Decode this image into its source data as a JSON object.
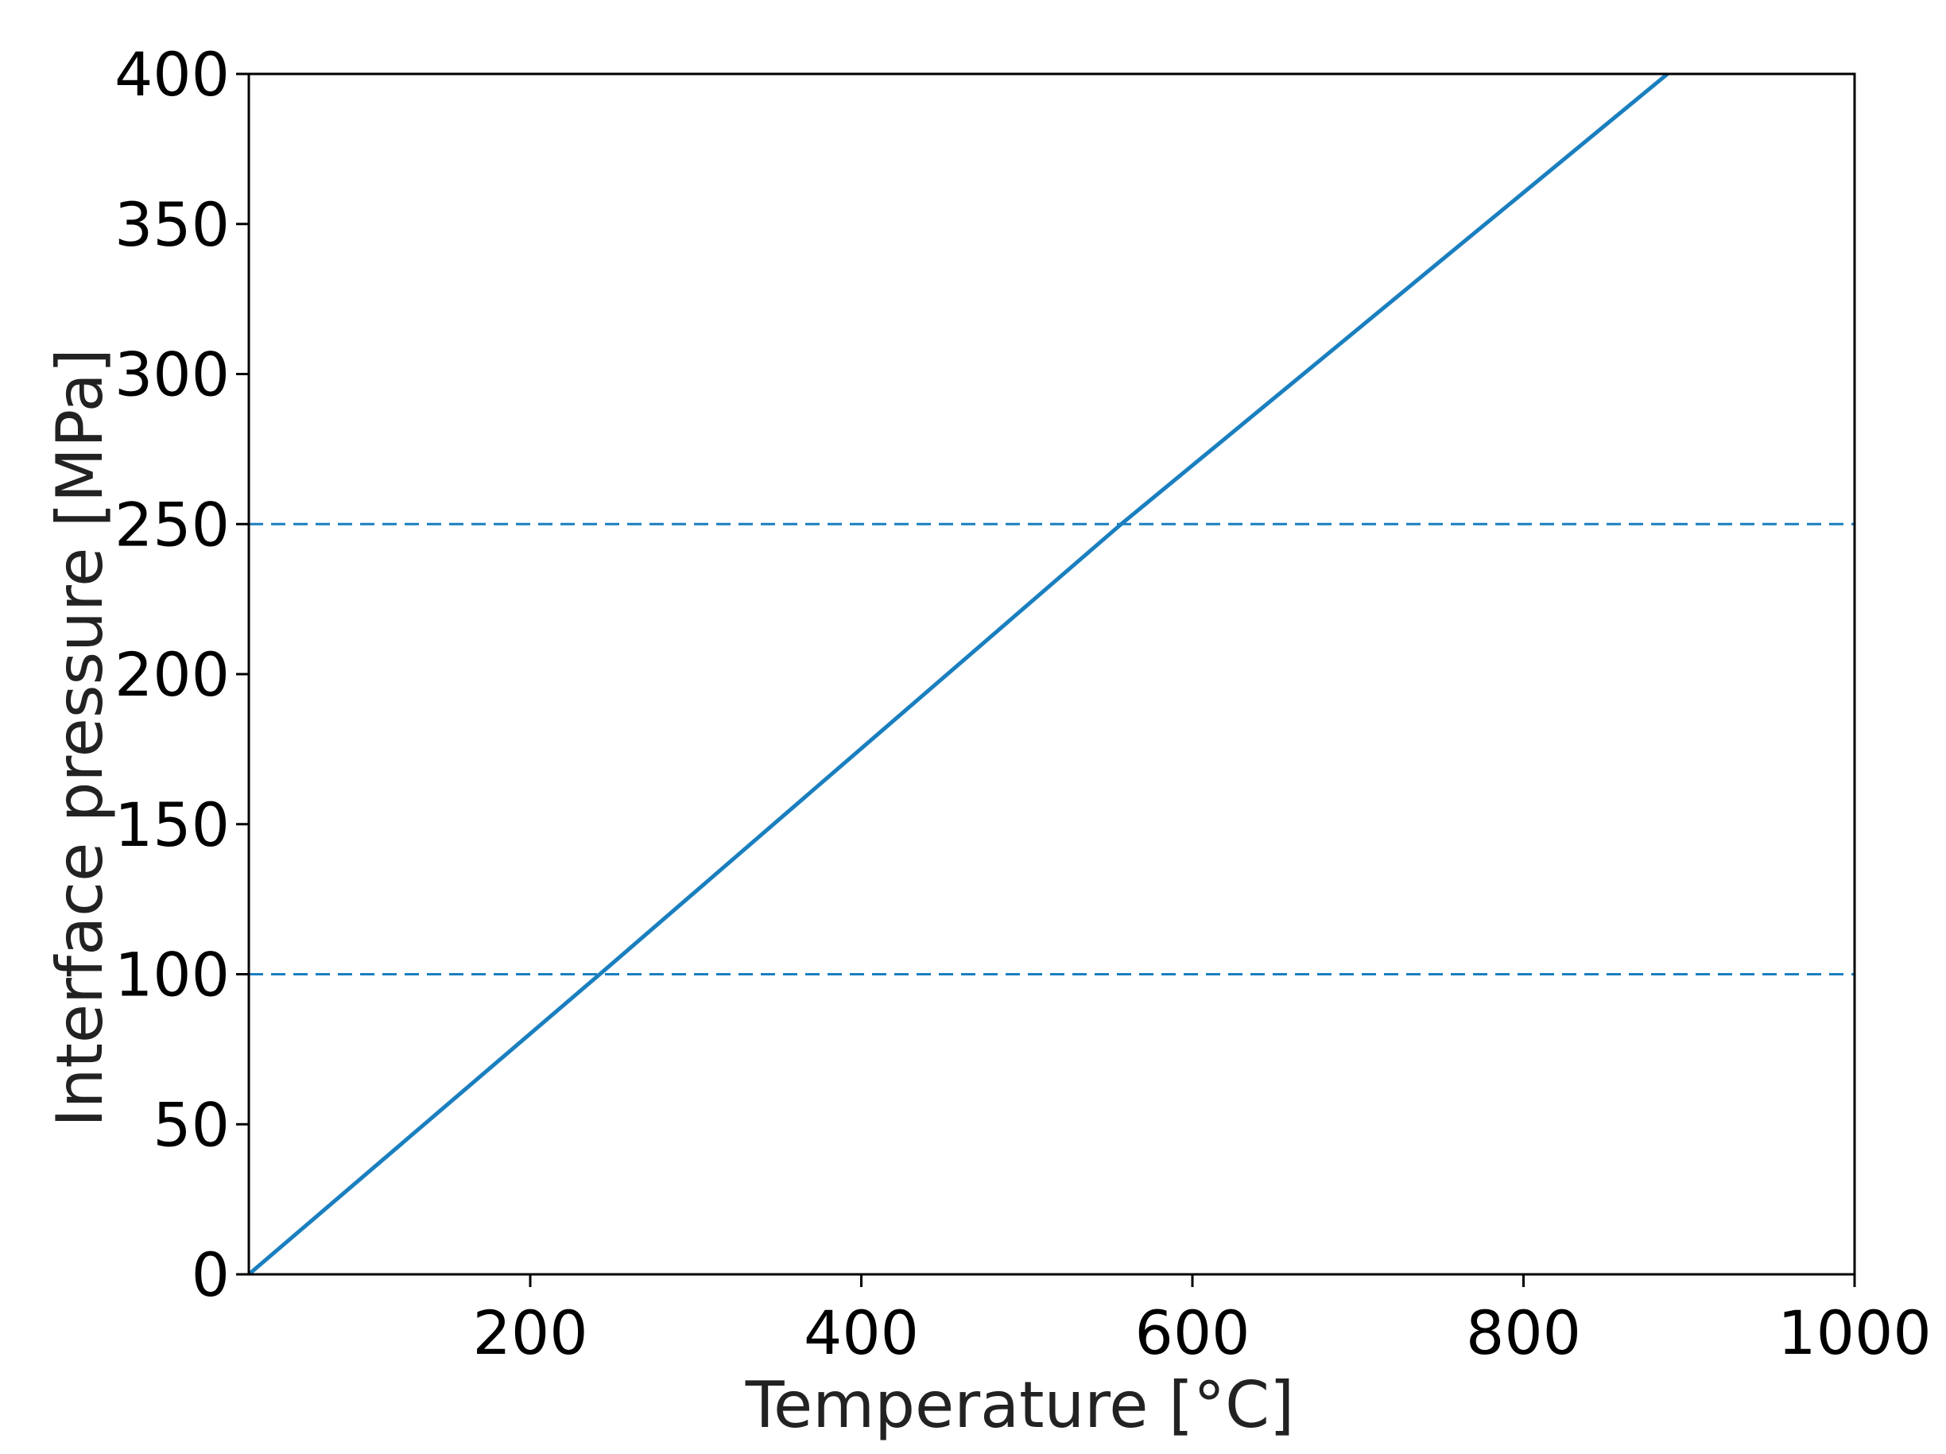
{
  "chart_data": {
    "type": "line",
    "xlabel": "Temperature [°C]",
    "ylabel": "Interface pressure [MPa]",
    "xlim": [
      30,
      1000
    ],
    "ylim": [
      0,
      400
    ],
    "x_ticks": [
      200,
      400,
      600,
      800,
      1000
    ],
    "y_ticks": [
      0,
      50,
      100,
      150,
      200,
      250,
      300,
      350,
      400
    ],
    "grid": false,
    "series": [
      {
        "x": [
          30,
          242,
          557,
          887
        ],
        "y": [
          0,
          100,
          250,
          400
        ],
        "color": "#1a7fbf",
        "style": "solid"
      }
    ],
    "reference_lines": [
      {
        "y": 100,
        "color": "#1a7fbf",
        "style": "dashed"
      },
      {
        "y": 250,
        "color": "#1a7fbf",
        "style": "dashed"
      }
    ]
  }
}
